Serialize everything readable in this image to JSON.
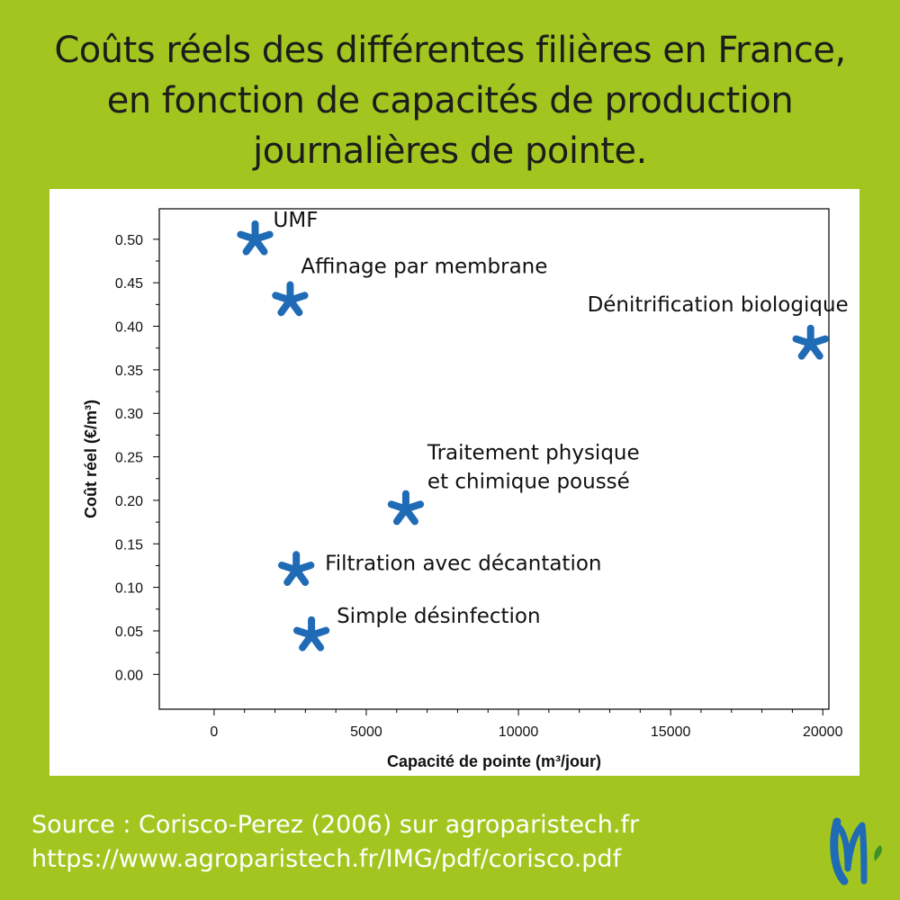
{
  "header": {
    "title_lines": [
      "Coûts réels des différentes filières en France,",
      "en fonction de capacités de production",
      "journalières de pointe."
    ]
  },
  "footer": {
    "source": "Source : Corisco-Perez (2006) sur agroparistech.fr",
    "url": "https://www.agroparistech.fr/IMG/pdf/corisco.pdf"
  },
  "colors": {
    "background": "#a2c61f",
    "marker": "#1f6bb5",
    "logo": "#1f6bb5"
  },
  "chart_data": {
    "type": "scatter",
    "xlabel": "Capacité de pointe (m³/jour)",
    "ylabel": "Coût réel (€/m³)",
    "xlim": [
      -1800,
      20200
    ],
    "ylim": [
      -0.04,
      0.535
    ],
    "x_ticks": [
      "0",
      "5000",
      "10000",
      "15000",
      "20000"
    ],
    "y_ticks": [
      "0.00",
      "0.05",
      "0.10",
      "0.15",
      "0.20",
      "0.25",
      "0.30",
      "0.35",
      "0.40",
      "0.45",
      "0.50"
    ],
    "grid": false,
    "legend": "none",
    "marker": "asterisk",
    "points": [
      {
        "label": "UMF",
        "x": 1350,
        "y": 0.5
      },
      {
        "label": "Affinage par membrane",
        "x": 2500,
        "y": 0.43
      },
      {
        "label": "Dénitrification biologique",
        "x": 19600,
        "y": 0.38
      },
      {
        "label": "Traitement physique\net chimique poussé",
        "x": 6300,
        "y": 0.19
      },
      {
        "label": "Filtration avec décantation",
        "x": 2700,
        "y": 0.12
      },
      {
        "label": "Simple désinfection",
        "x": 3200,
        "y": 0.045
      }
    ]
  }
}
